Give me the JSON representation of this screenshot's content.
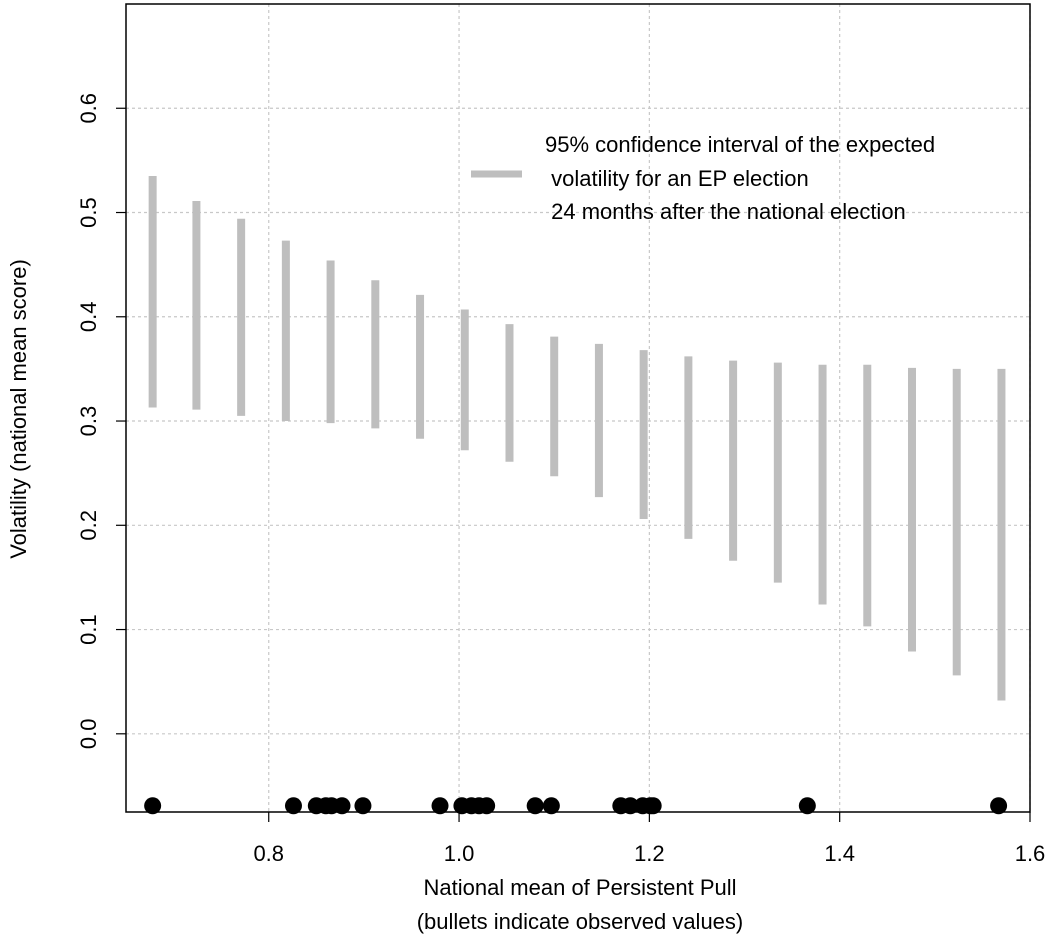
{
  "chart_data": {
    "type": "errorbar",
    "xlabel_lines": [
      "National mean of Persistent Pull",
      "(bullets indicate observed values)"
    ],
    "ylabel": "Volatility (national mean score)",
    "xlim": [
      0.65,
      1.6
    ],
    "ylim": [
      -0.075,
      0.7
    ],
    "x_ticks": [
      0.8,
      1.0,
      1.2,
      1.4,
      1.6
    ],
    "x_tick_labels": [
      "0.8",
      "1.0",
      "1.2",
      "1.4",
      "1.6"
    ],
    "y_ticks": [
      0.0,
      0.1,
      0.2,
      0.3,
      0.4,
      0.5,
      0.6
    ],
    "y_tick_labels": [
      "0.0",
      "0.1",
      "0.2",
      "0.3",
      "0.4",
      "0.5",
      "0.6"
    ],
    "grid": true,
    "legend": {
      "position": "top-right",
      "lines": [
        "95% confidence interval of the expected",
        " volatility for an EP election",
        " 24 months after the national election"
      ],
      "color": "#bebebe"
    },
    "intervals": [
      {
        "x": 0.678,
        "low": 0.313,
        "high": 0.535
      },
      {
        "x": 0.724,
        "low": 0.311,
        "high": 0.511
      },
      {
        "x": 0.771,
        "low": 0.305,
        "high": 0.494
      },
      {
        "x": 0.818,
        "low": 0.3,
        "high": 0.473
      },
      {
        "x": 0.865,
        "low": 0.298,
        "high": 0.454
      },
      {
        "x": 0.912,
        "low": 0.293,
        "high": 0.435
      },
      {
        "x": 0.959,
        "low": 0.283,
        "high": 0.421
      },
      {
        "x": 1.006,
        "low": 0.272,
        "high": 0.407
      },
      {
        "x": 1.053,
        "low": 0.261,
        "high": 0.393
      },
      {
        "x": 1.1,
        "low": 0.247,
        "high": 0.381
      },
      {
        "x": 1.147,
        "low": 0.227,
        "high": 0.374
      },
      {
        "x": 1.194,
        "low": 0.206,
        "high": 0.368
      },
      {
        "x": 1.241,
        "low": 0.187,
        "high": 0.362
      },
      {
        "x": 1.288,
        "low": 0.166,
        "high": 0.358
      },
      {
        "x": 1.335,
        "low": 0.145,
        "high": 0.356
      },
      {
        "x": 1.382,
        "low": 0.124,
        "high": 0.354
      },
      {
        "x": 1.429,
        "low": 0.103,
        "high": 0.354
      },
      {
        "x": 1.476,
        "low": 0.079,
        "high": 0.351
      },
      {
        "x": 1.523,
        "low": 0.056,
        "high": 0.35
      },
      {
        "x": 1.57,
        "low": 0.032,
        "high": 0.35
      }
    ],
    "observed_y": -0.069,
    "observed_x": [
      0.678,
      0.826,
      0.85,
      0.86,
      0.866,
      0.877,
      0.899,
      0.98,
      1.003,
      1.013,
      1.021,
      1.029,
      1.08,
      1.097,
      1.17,
      1.18,
      1.193,
      1.201,
      1.204,
      1.366,
      1.567
    ],
    "colors": {
      "interval": "#bebebe",
      "bullet": "#000000",
      "grid": "#c8c8c8",
      "axis": "#000000"
    }
  }
}
